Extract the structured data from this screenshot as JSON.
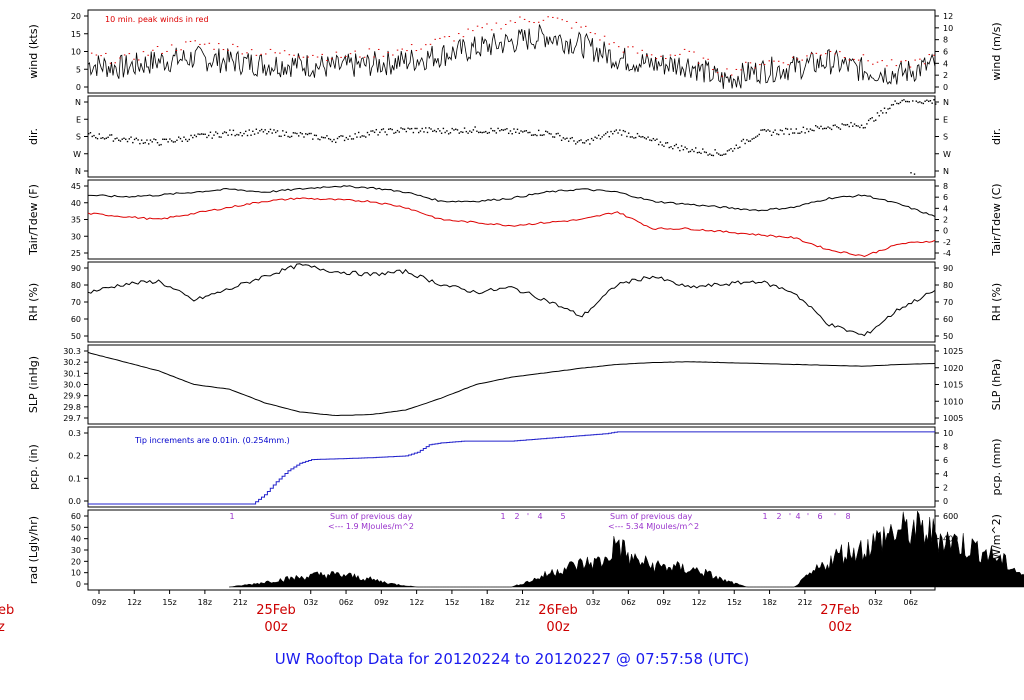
{
  "footer": {
    "prefix": "UW Rooftop Data for",
    "start": "20120224",
    "sep": "to",
    "end": "20120227",
    "at": "@",
    "time": "07:57:58",
    "tz": "(UTC)",
    "full": "UW Rooftop Data for 20120224  to  20120227 @ 07:57:58  (UTC)"
  },
  "colors": {
    "primary": "#000000",
    "dew": "#dd0000",
    "rain": "#2222cc",
    "annot": "#9933cc",
    "day": "#cc0000",
    "footer": "#1a1aee"
  },
  "chart_data": [
    {
      "type": "line",
      "title": "wind",
      "ylabel": "wind (kts)",
      "ylabel_right": "wind (m/s)",
      "ylim": [
        0,
        24
      ],
      "ticks_left": [
        "0",
        "5",
        "10",
        "15",
        "20"
      ],
      "ticks_right": [
        "0",
        "2",
        "4",
        "6",
        "8",
        "10",
        "12"
      ],
      "annotation": "10 min. peak winds in red",
      "x": [
        0,
        6,
        12,
        18,
        24,
        30,
        36,
        42,
        48,
        54,
        60,
        66,
        72,
        78,
        84,
        90,
        96,
        102,
        108,
        114,
        120,
        126,
        132,
        138,
        144
      ],
      "series": [
        {
          "name": "wind",
          "values": [
            8,
            7,
            9,
            10,
            9,
            8,
            8,
            7,
            8,
            9,
            11,
            13,
            15,
            17,
            14,
            10,
            8,
            8,
            3,
            6,
            7,
            9,
            6,
            5,
            8
          ]
        },
        {
          "name": "peak",
          "values": [
            10,
            9,
            12,
            14,
            13,
            11,
            11,
            10,
            11,
            12,
            15,
            18,
            21,
            22,
            19,
            13,
            10,
            11,
            5,
            8,
            9,
            12,
            9,
            7,
            10
          ]
        }
      ]
    },
    {
      "type": "scatter",
      "title": "dir",
      "ylabel": "dir.",
      "ylabel_right": "dir.",
      "ticks_left": [
        "N",
        "W",
        "S",
        "E",
        "N"
      ],
      "ticks_right": [
        "N",
        "W",
        "S",
        "E",
        "N"
      ],
      "x": [
        0,
        6,
        12,
        18,
        24,
        30,
        36,
        42,
        48,
        54,
        60,
        66,
        72,
        78,
        84,
        90,
        96,
        102,
        108,
        114,
        120,
        126,
        132,
        138,
        144
      ],
      "series": [
        {
          "name": "direction_deg",
          "values": [
            190,
            170,
            155,
            180,
            200,
            205,
            190,
            170,
            200,
            215,
            210,
            215,
            205,
            200,
            150,
            210,
            160,
            120,
            100,
            200,
            210,
            230,
            240,
            360,
            350
          ]
        }
      ]
    },
    {
      "type": "line",
      "title": "temperature",
      "ylabel": "Tair/Tdew (F)",
      "ylabel_right": "Tair/Tdew (C)",
      "ylim": [
        23,
        47
      ],
      "ticks_left": [
        "25",
        "30",
        "35",
        "40",
        "45"
      ],
      "ticks_right": [
        "-4",
        "-2",
        "0",
        "2",
        "4",
        "6",
        "8"
      ],
      "x": [
        0,
        6,
        12,
        18,
        24,
        30,
        36,
        42,
        48,
        54,
        60,
        66,
        72,
        78,
        84,
        90,
        96,
        102,
        108,
        114,
        120,
        126,
        132,
        138,
        144
      ],
      "series": [
        {
          "name": "Tair",
          "values": [
            43,
            42.5,
            43,
            44,
            45,
            44,
            45,
            46,
            45.5,
            44,
            41,
            41,
            42,
            44,
            45,
            44,
            41,
            40,
            39,
            38,
            39,
            42,
            43,
            40,
            36
          ]
        },
        {
          "name": "Tdew",
          "values": [
            37,
            36,
            35,
            37,
            39,
            41,
            42,
            41.5,
            41,
            39,
            35,
            34,
            33,
            34,
            35,
            37.5,
            32,
            32,
            31,
            30,
            29,
            25,
            23,
            27,
            28
          ]
        }
      ]
    },
    {
      "type": "line",
      "title": "humidity",
      "ylabel": "RH (%)",
      "ylabel_right": "RH (%)",
      "ylim": [
        46,
        92
      ],
      "ticks_left": [
        "50",
        "60",
        "70",
        "80",
        "90"
      ],
      "ticks_right": [
        "50",
        "60",
        "70",
        "80",
        "90"
      ],
      "x": [
        0,
        6,
        12,
        18,
        24,
        30,
        36,
        42,
        48,
        54,
        60,
        66,
        72,
        78,
        84,
        90,
        96,
        102,
        108,
        114,
        120,
        126,
        132,
        138,
        144
      ],
      "series": [
        {
          "name": "RH",
          "values": [
            75,
            80,
            82,
            70,
            77,
            85,
            92,
            88,
            86,
            88,
            80,
            75,
            78,
            70,
            60,
            80,
            85,
            78,
            80,
            82,
            75,
            55,
            48,
            65,
            76
          ]
        }
      ]
    },
    {
      "type": "line",
      "title": "pressure",
      "ylabel": "SLP (inHg)",
      "ylabel_right": "SLP (hPa)",
      "ylim": [
        29.6,
        30.4
      ],
      "ticks_left": [
        "29.7",
        "29.8",
        "29.9",
        "30.0",
        "30.1",
        "30.2",
        "30.3"
      ],
      "ticks_right": [
        "1005",
        "1010",
        "1015",
        "1020",
        "1025"
      ],
      "x": [
        0,
        6,
        12,
        18,
        24,
        30,
        36,
        42,
        48,
        54,
        60,
        66,
        72,
        78,
        84,
        90,
        96,
        102,
        108,
        114,
        120,
        126,
        132,
        138,
        144
      ],
      "series": [
        {
          "name": "SLP",
          "values": [
            30.35,
            30.25,
            30.15,
            30.0,
            29.95,
            29.8,
            29.7,
            29.66,
            29.67,
            29.72,
            29.85,
            30.0,
            30.08,
            30.13,
            30.18,
            30.22,
            30.24,
            30.25,
            30.24,
            30.23,
            30.22,
            30.21,
            30.2,
            30.22,
            30.23
          ]
        }
      ]
    },
    {
      "type": "area",
      "title": "precipitation",
      "ylabel": "pcp. (in)",
      "ylabel_right": "pcp. (mm)",
      "ylim": [
        0,
        0.4
      ],
      "ticks_left": [
        "0.0",
        "0.1",
        "0.2",
        "0.3"
      ],
      "ticks_right": [
        "0",
        "2",
        "4",
        "6",
        "8",
        "10"
      ],
      "annotation": "Tip increments are 0.01in. (0.254mm.)",
      "x": [
        0,
        28,
        30,
        32,
        34,
        36,
        38,
        48,
        54,
        56,
        58,
        60,
        64,
        72,
        80,
        84,
        88,
        90,
        96,
        144
      ],
      "series": [
        {
          "name": "cumulative",
          "values": [
            0,
            0,
            0.05,
            0.12,
            0.18,
            0.22,
            0.24,
            0.25,
            0.26,
            0.28,
            0.32,
            0.33,
            0.34,
            0.34,
            0.36,
            0.37,
            0.38,
            0.39,
            0.39,
            0.39
          ]
        }
      ]
    },
    {
      "type": "area",
      "title": "radiation",
      "ylabel": "rad (Lgly/hr)",
      "ylabel_right": "rad (W/m^2)",
      "ylim": [
        0,
        65
      ],
      "ticks_left": [
        "0",
        "10",
        "20",
        "30",
        "40",
        "50",
        "60"
      ],
      "ticks_right": [
        "0",
        "200",
        "400",
        "600"
      ],
      "annotations": [
        {
          "line1": "Sum of previous day",
          "line2": "<--- 1.9 MJoules/m^2"
        },
        {
          "line1": "Sum of previous day",
          "line2": "<--- 5.34 MJoules/m^2"
        }
      ],
      "hour_marks": [
        "1",
        "1",
        "2",
        "'",
        "4",
        "5",
        "1",
        "2",
        "'",
        "4",
        "'",
        "6",
        "'",
        "8"
      ],
      "x": [
        12,
        14,
        16,
        18,
        20,
        22,
        24,
        26,
        28,
        36,
        38,
        40,
        42,
        44,
        45,
        46,
        48,
        50,
        52,
        54,
        56,
        60,
        62,
        64,
        66,
        68,
        70,
        72,
        74,
        76,
        78,
        80,
        82
      ],
      "series": [
        {
          "name": "rad",
          "values": [
            0,
            3,
            7,
            10,
            13,
            12,
            8,
            3,
            0,
            0,
            8,
            18,
            24,
            27,
            48,
            30,
            22,
            20,
            17,
            7,
            0,
            0,
            18,
            35,
            40,
            55,
            60,
            55,
            45,
            38,
            25,
            8,
            0
          ]
        }
      ]
    }
  ],
  "x_axis": {
    "hour_labels": [
      "09z",
      "12z",
      "15z",
      "18z",
      "21z",
      "03z",
      "06z",
      "09z",
      "12z",
      "15z",
      "18z",
      "21z",
      "03z",
      "06z",
      "09z",
      "12z",
      "15z",
      "18z",
      "21z",
      "03z",
      "06z"
    ],
    "hour_positions": [
      0,
      3,
      6,
      9,
      12,
      18,
      21,
      24,
      27,
      30,
      33,
      36,
      42,
      45,
      48,
      51,
      54,
      57,
      60,
      66,
      69
    ],
    "day_labels": [
      {
        "date": "25Feb",
        "time": "00z"
      },
      {
        "date": "26Feb",
        "time": "00z"
      },
      {
        "date": "27Feb",
        "time": "00z"
      }
    ],
    "left_day": {
      "date": "eb",
      "time": "z"
    }
  }
}
